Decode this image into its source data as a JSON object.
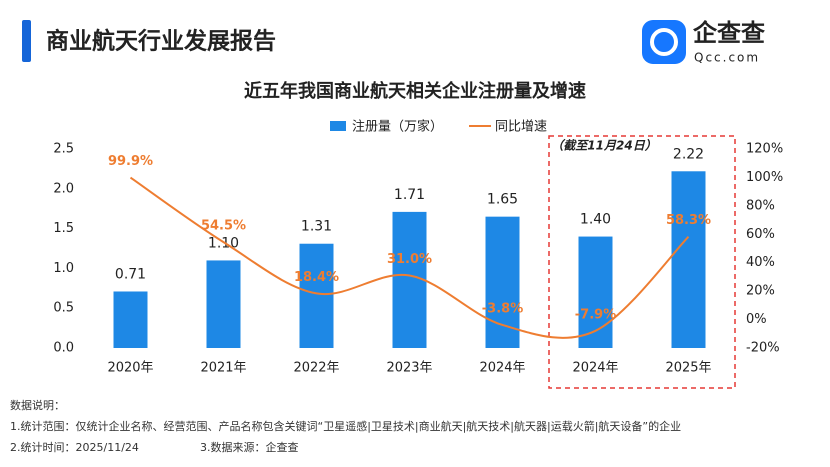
{
  "header": {
    "title": "商业航天行业发展报告",
    "logo_text": "企查查",
    "logo_url": "Qcc.com"
  },
  "chart_data": {
    "type": "combo",
    "title": "近五年我国商业航天相关企业注册量及增速",
    "annotation": "（截至11月24日）",
    "categories": [
      "2020年",
      "2021年",
      "2022年",
      "2023年",
      "2024年",
      "2024年",
      "2025年"
    ],
    "series": [
      {
        "name": "注册量（万家）",
        "type": "bar",
        "color": "#1e88e5",
        "values": [
          0.71,
          1.1,
          1.31,
          1.71,
          1.65,
          1.4,
          2.22
        ],
        "value_labels": [
          "0.71",
          "1.10",
          "1.31",
          "1.71",
          "1.65",
          "1.40",
          "2.22"
        ]
      },
      {
        "name": "同比增速",
        "type": "line",
        "axis": "y2",
        "color": "#ee7d31",
        "values": [
          99.9,
          54.5,
          18.4,
          31.0,
          -3.8,
          -7.9,
          58.3
        ],
        "value_labels": [
          "99.9%",
          "54.5%",
          "18.4%",
          "31.0%",
          "-3.8%",
          "-7.9%",
          "58.3%"
        ]
      }
    ],
    "ylim": [
      0,
      2.5
    ],
    "yticks": [
      {
        "value": 0,
        "label": "0.0"
      },
      0.5,
      {
        "value": 1,
        "label": "1.0"
      },
      1.5,
      {
        "value": 2,
        "label": "2.0"
      },
      2.5
    ],
    "y2lim": [
      -20,
      120
    ],
    "y2ticks": [
      {
        "value": -20,
        "label": "-20%"
      },
      {
        "value": 0,
        "label": "0%"
      },
      {
        "value": 20,
        "label": "20%"
      },
      {
        "value": 40,
        "label": "40%"
      },
      {
        "value": 60,
        "label": "60%"
      },
      {
        "value": 80,
        "label": "80%"
      },
      {
        "value": 100,
        "label": "100%"
      },
      {
        "value": 120,
        "label": "120%"
      }
    ],
    "grid": false,
    "legend": "top"
  },
  "notes": {
    "heading": "数据说明：",
    "lines": [
      "1.统计范围：仅统计企业名称、经营范围、产品名称包含关键词“卫星遥感|卫星技术|商业航天|航天技术|航天器|运载火箭|航天设备”的企业",
      "2.统计时间：2025/11/24",
      "3.数据来源：企查查"
    ]
  }
}
